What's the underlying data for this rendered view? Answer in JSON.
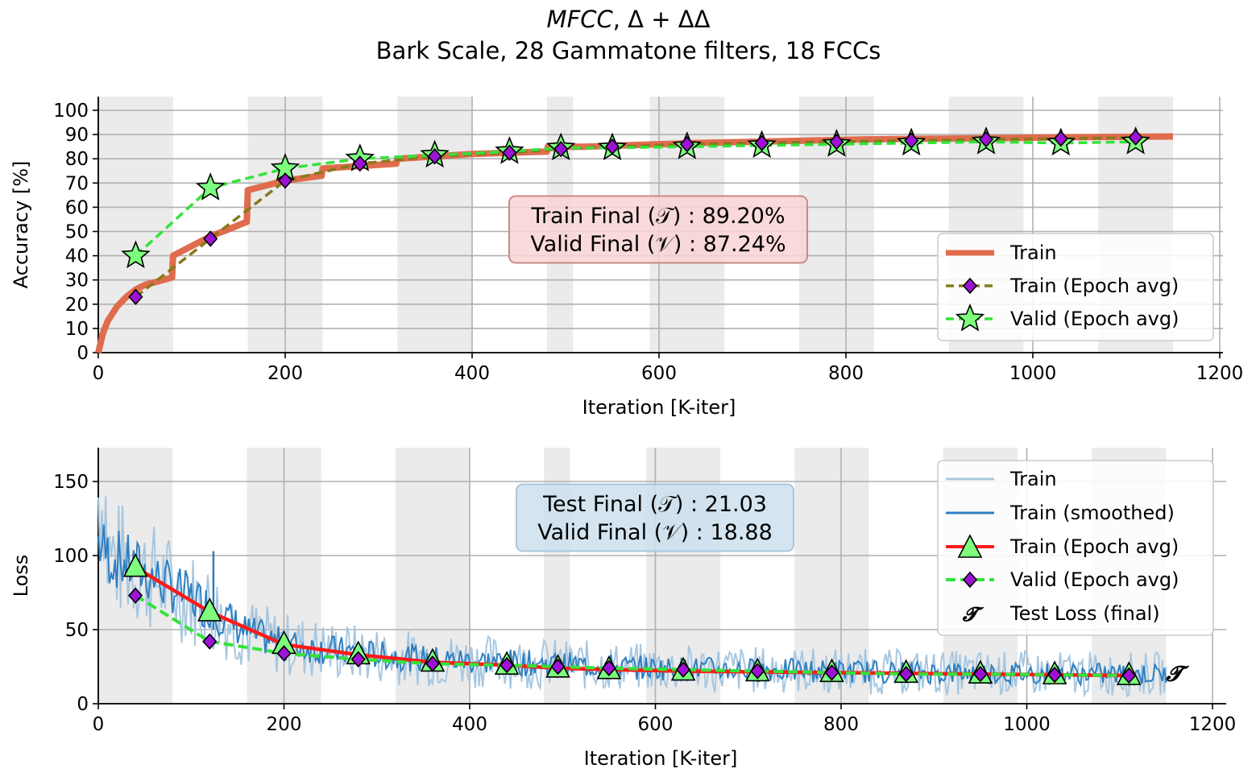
{
  "figure": {
    "title_line1_italic": "MFCC",
    "title_line1_rest": ", Δ + ΔΔ",
    "title_line2": "Bark Scale, 28 Gammatone filters, 18 FCCs"
  },
  "chart_data": [
    {
      "type": "line",
      "xlabel": "Iteration [K-iter]",
      "ylabel": "Accuracy [%]",
      "xlim": [
        0,
        1200
      ],
      "ylim": [
        0,
        105
      ],
      "xticks": [
        0,
        200,
        400,
        600,
        800,
        1000,
        1200
      ],
      "yticks": [
        0,
        10,
        20,
        30,
        40,
        50,
        60,
        70,
        80,
        90,
        100
      ],
      "grid": true,
      "shaded_epochs": [
        [
          0,
          80
        ],
        [
          160,
          240
        ],
        [
          320,
          400
        ],
        [
          480,
          508
        ],
        [
          590,
          670
        ],
        [
          750,
          830
        ],
        [
          910,
          990
        ],
        [
          1070,
          1150
        ]
      ],
      "annotation": [
        "Train Final (𝒯) :  89.20%",
        "Valid Final (𝒱) :  87.24%"
      ],
      "legend": {
        "position": "lower-right",
        "entries": [
          "Train",
          "Train (Epoch avg)",
          "Valid (Epoch avg)"
        ]
      },
      "series": [
        {
          "name": "Train",
          "color": "#e06c4e",
          "x": [
            0,
            5,
            10,
            20,
            30,
            40,
            50,
            60,
            79,
            80,
            100,
            120,
            140,
            159,
            160,
            200,
            239,
            240,
            280,
            319,
            320,
            360,
            400,
            440,
            480,
            481,
            520,
            560,
            600,
            640,
            700,
            760,
            820,
            900,
            960,
            1020,
            1080,
            1150
          ],
          "y": [
            0,
            8,
            13,
            19,
            23,
            26,
            28,
            29,
            31,
            40,
            44,
            48,
            51,
            54,
            67,
            71,
            73,
            76,
            77,
            78,
            80,
            81,
            82,
            82.5,
            83,
            85,
            85,
            85.5,
            86,
            86.5,
            87,
            87.5,
            88,
            88.3,
            88.5,
            88.8,
            89,
            89.2
          ]
        },
        {
          "name": "Train (Epoch avg)",
          "color": "#857a1a",
          "x": [
            40,
            120,
            200,
            280,
            360,
            440,
            495,
            550,
            630,
            710,
            790,
            870,
            950,
            1030,
            1110
          ],
          "y": [
            23,
            47,
            71,
            78,
            81,
            82.5,
            84,
            85,
            86,
            86.5,
            87,
            87.5,
            88,
            88.3,
            88.8
          ]
        },
        {
          "name": "Valid (Epoch avg)",
          "color": "#33e33a",
          "x": [
            40,
            120,
            200,
            280,
            360,
            440,
            495,
            550,
            630,
            710,
            790,
            870,
            950,
            1030,
            1110
          ],
          "y": [
            40,
            68,
            76,
            80,
            81.5,
            83,
            84.5,
            84.5,
            85,
            85.5,
            86,
            86.5,
            87,
            86.5,
            87
          ]
        }
      ]
    },
    {
      "type": "line",
      "xlabel": "Iteration [K-iter]",
      "ylabel": "Loss",
      "xlim": [
        0,
        1210
      ],
      "ylim": [
        0,
        170
      ],
      "xticks": [
        0,
        200,
        400,
        600,
        800,
        1000,
        1200
      ],
      "yticks": [
        0,
        50,
        100,
        150
      ],
      "grid": true,
      "shaded_epochs": [
        [
          0,
          80
        ],
        [
          160,
          240
        ],
        [
          320,
          400
        ],
        [
          480,
          508
        ],
        [
          590,
          670
        ],
        [
          750,
          830
        ],
        [
          910,
          990
        ],
        [
          1070,
          1150
        ]
      ],
      "annotation": [
        "Test Final (𝒯) :  21.03",
        "Valid Final (𝒱) :  18.88"
      ],
      "legend": {
        "position": "upper-right",
        "entries": [
          "Train",
          "Train (smoothed)",
          "Train (Epoch avg)",
          "Valid (Epoch avg)",
          "Test Loss (final)"
        ]
      },
      "series": [
        {
          "name": "Train (smoothed)",
          "color": "#2f7fc0",
          "x": [
            0,
            10,
            40,
            80,
            120,
            160,
            200,
            280,
            360,
            440,
            520,
            600,
            700,
            800,
            900,
            1000,
            1100,
            1150
          ],
          "y": [
            110,
            100,
            92,
            78,
            65,
            48,
            40,
            34,
            30,
            28,
            26,
            24,
            23,
            22,
            21,
            20.5,
            20,
            20
          ]
        },
        {
          "name": "Train (Epoch avg)",
          "color": "#ff1a1a",
          "x": [
            40,
            120,
            200,
            280,
            360,
            440,
            495,
            550,
            630,
            710,
            790,
            870,
            950,
            1030,
            1110
          ],
          "y": [
            92,
            62,
            40,
            33,
            28,
            26,
            24,
            23,
            22,
            21.5,
            21,
            20.5,
            20,
            19.5,
            19
          ]
        },
        {
          "name": "Valid (Epoch avg)",
          "color": "#33e33a",
          "x": [
            40,
            120,
            200,
            280,
            360,
            440,
            495,
            550,
            630,
            710,
            790,
            870,
            950,
            1030,
            1110
          ],
          "y": [
            73,
            42,
            34,
            30,
            27,
            26,
            25,
            24,
            23,
            22,
            21,
            20,
            20,
            19.5,
            19
          ]
        }
      ],
      "test_loss_final": {
        "x": 1150,
        "y": 21.03
      }
    }
  ],
  "colors": {
    "train_acc": "#e06c4e",
    "train_avg_acc": "#857a1a",
    "valid_green": "#33e33a",
    "star_fill": "#7dff7d",
    "diamond_fill": "#9e12d6",
    "loss_raw": "#a7c7e0",
    "loss_smooth": "#2f7fc0",
    "loss_epoch": "#ff1a1a",
    "shade": "#ebebeb",
    "acc_box": "#f9d3d3",
    "loss_box": "#cde0ee"
  }
}
